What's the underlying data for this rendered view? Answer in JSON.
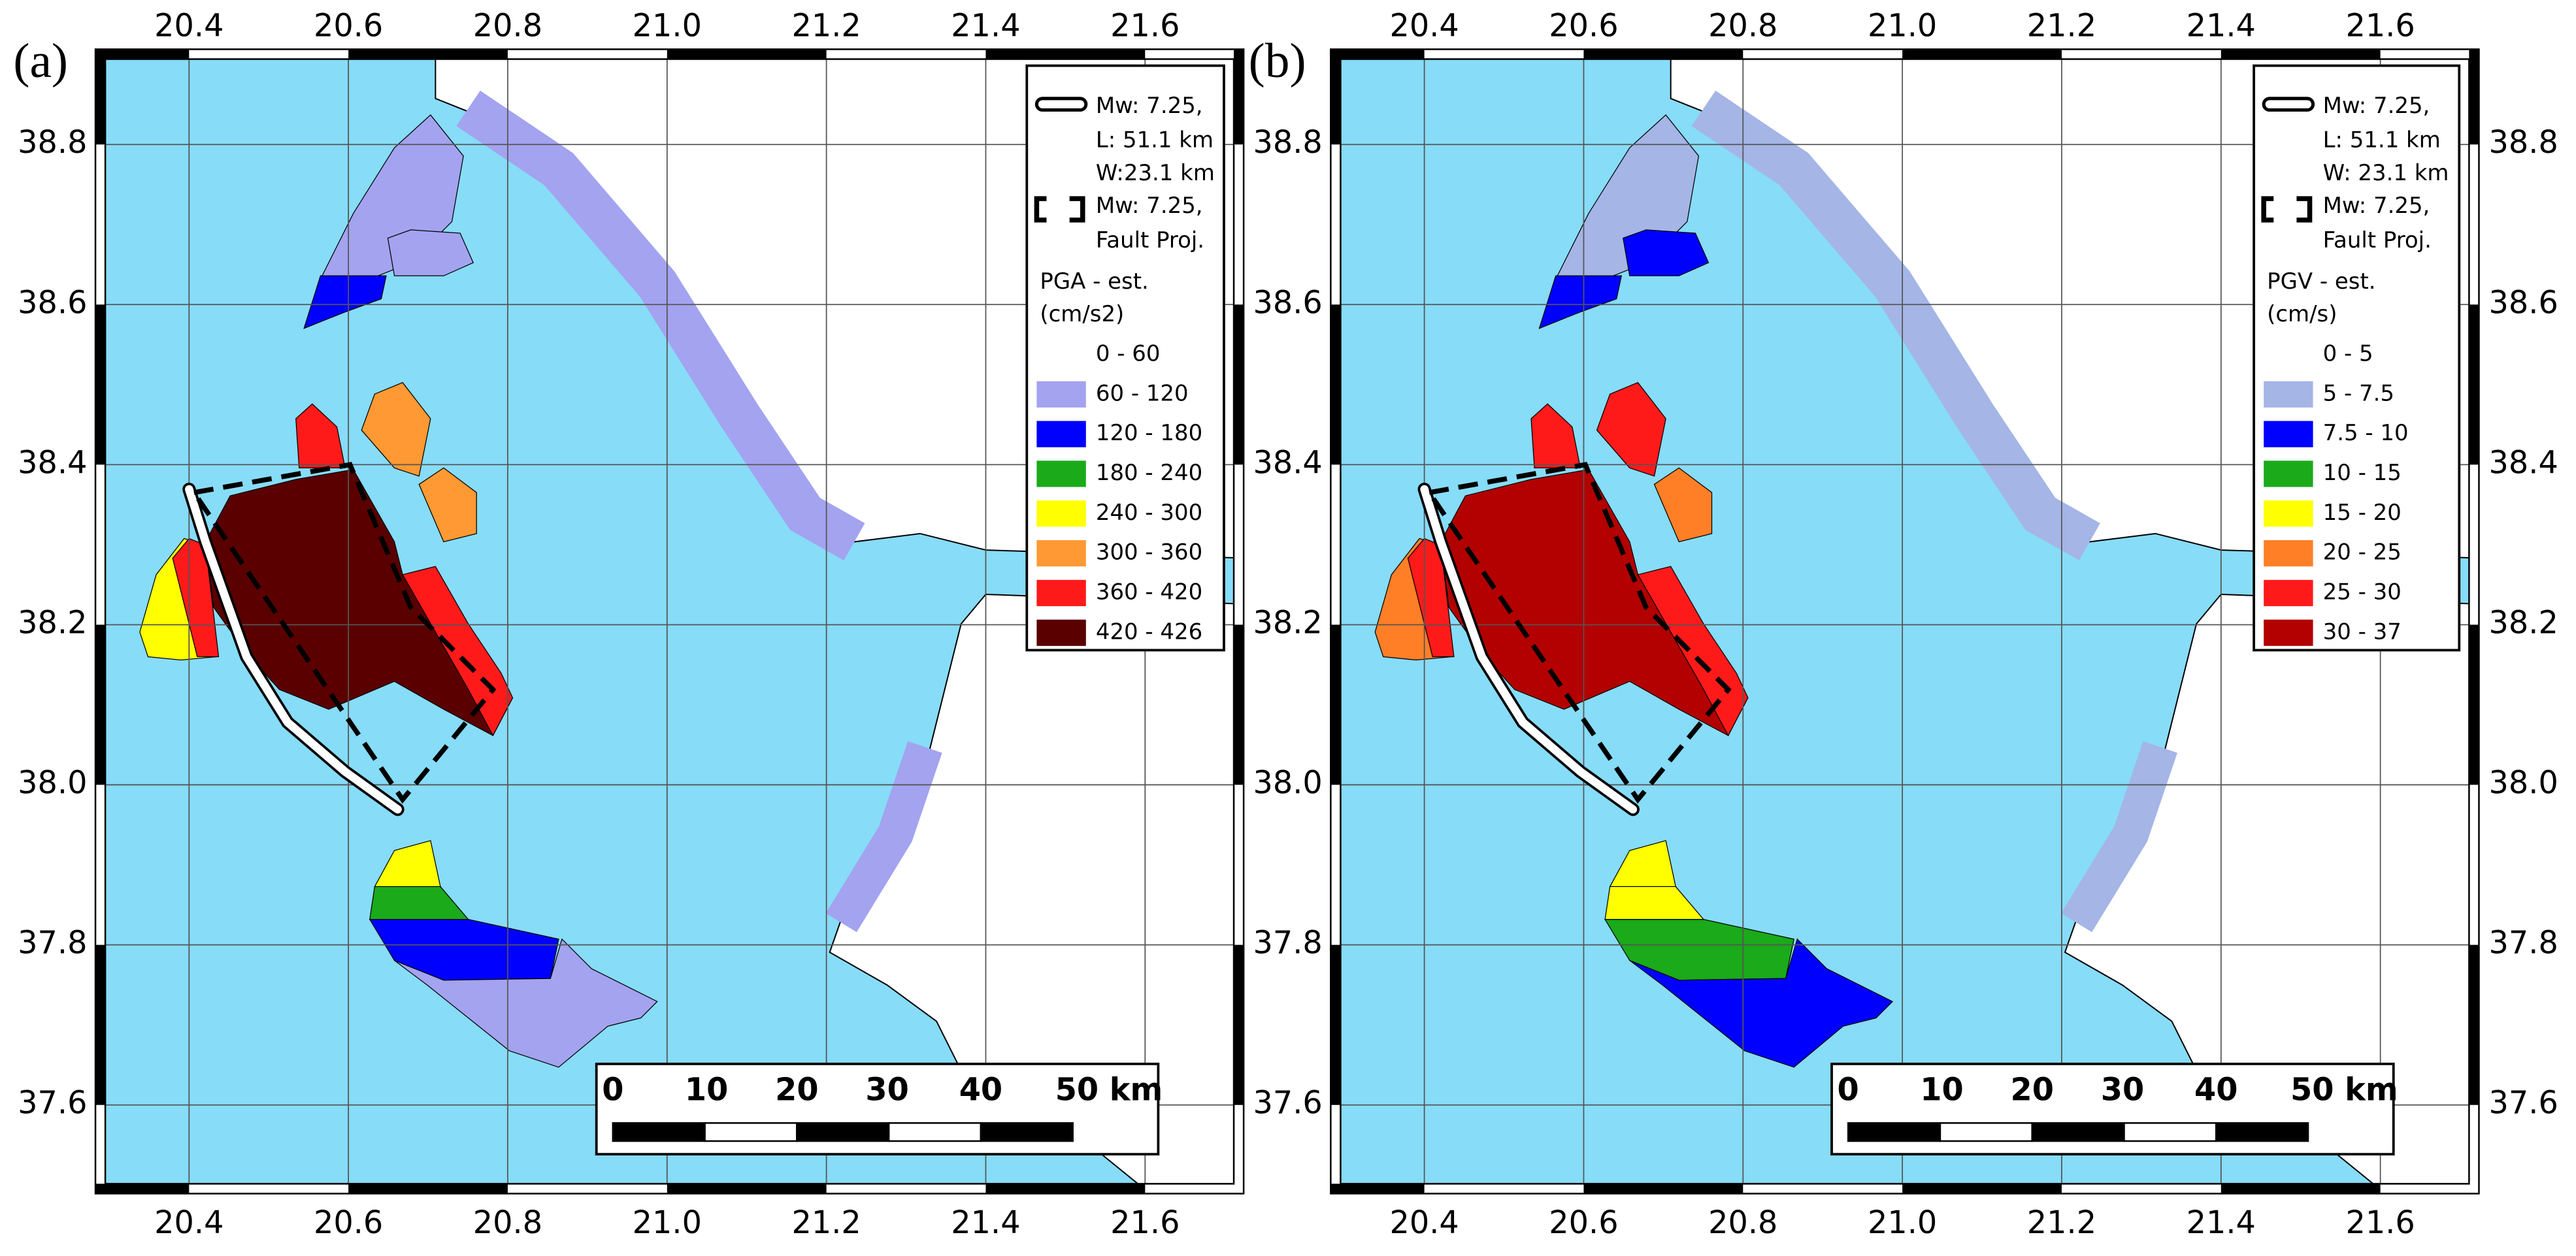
{
  "panels": [
    {
      "label": "(a)",
      "legend": {
        "fault_trace": [
          "Mw: 7.25,",
          "L: 51.1 km",
          "W:23.1 km"
        ],
        "fault_projection": [
          "Mw: 7.25,",
          "Fault Proj."
        ],
        "title": [
          "PGA - est.",
          "(cm/s2)"
        ],
        "classes": [
          {
            "label": "0 - 60",
            "color": "#ffffff"
          },
          {
            "label": "60 - 120",
            "color": "#a3a3f0"
          },
          {
            "label": "120 - 180",
            "color": "#0000ff"
          },
          {
            "label": "180 - 240",
            "color": "#1aaa1a"
          },
          {
            "label": "240 - 300",
            "color": "#ffff00"
          },
          {
            "label": "300 - 360",
            "color": "#ff9933"
          },
          {
            "label": "360 - 420",
            "color": "#ff1a1a"
          },
          {
            "label": "420 - 426",
            "color": "#5a0000"
          }
        ]
      }
    },
    {
      "label": "(b)",
      "legend": {
        "fault_trace": [
          "Mw: 7.25,",
          "L: 51.1 km",
          "W: 23.1 km"
        ],
        "fault_projection": [
          "Mw: 7.25,",
          "Fault Proj."
        ],
        "title": [
          "PGV - est.",
          "(cm/s)"
        ],
        "classes": [
          {
            "label": "0 - 5",
            "color": "#ffffff"
          },
          {
            "label": "5 - 7.5",
            "color": "#a4b5e6"
          },
          {
            "label": "7.5 - 10",
            "color": "#0000ff"
          },
          {
            "label": "10 - 15",
            "color": "#1aaa1a"
          },
          {
            "label": "15 - 20",
            "color": "#ffff00"
          },
          {
            "label": "20 - 25",
            "color": "#ff7f27"
          },
          {
            "label": "25 - 30",
            "color": "#ff1a1a"
          },
          {
            "label": "30 - 37",
            "color": "#b30000"
          }
        ]
      }
    }
  ],
  "lon_ticks": [
    "20.4",
    "20.6",
    "20.8",
    "21.0",
    "21.2",
    "21.4",
    "21.6"
  ],
  "lat_ticks": [
    "38.8",
    "38.6",
    "38.4",
    "38.2",
    "38.0",
    "37.8",
    "37.6"
  ],
  "scale_bar": [
    "0",
    "10",
    "20",
    "30",
    "40",
    "50 km"
  ]
}
